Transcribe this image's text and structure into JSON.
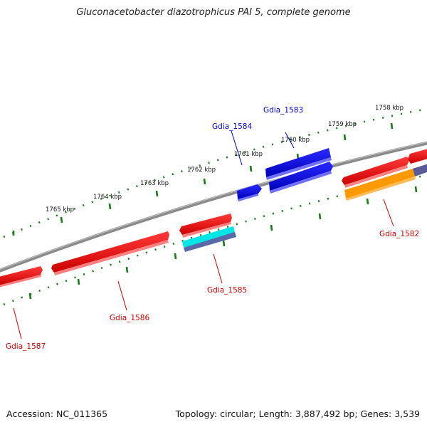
{
  "title": "Gluconacetobacter diazotrophicus PAI 5, complete genome",
  "footer": {
    "accession": "Accession: NC_011365",
    "summary": "Topology: circular; Length: 3,887,492 bp; Genes: 3,539"
  },
  "scale": {
    "labels": [
      "1758 kbp",
      "1759 kbp",
      "1760 kbp",
      "1761 kbp",
      "1762 kbp",
      "1763 kbp",
      "1764 kbp",
      "1765 kbp"
    ]
  },
  "genes": [
    {
      "label": "Gdia_1582",
      "color": "#cc0000"
    },
    {
      "label": "Gdia_1583",
      "color": "#0000cc"
    },
    {
      "label": "Gdia_1584",
      "color": "#0000cc"
    },
    {
      "label": "Gdia_1585",
      "color": "#cc0000"
    },
    {
      "label": "Gdia_1586",
      "color": "#cc0000"
    },
    {
      "label": "Gdia_1587",
      "color": "#cc0000"
    }
  ],
  "colors": {
    "forward": "#ff0000",
    "reverse": "#0000ff",
    "backbone": "#808080",
    "ticks": "#1a7a1a",
    "cyan_feature": "#00e5e5",
    "orange_feature": "#ff9900",
    "slate_feature": "#5a5a9a"
  }
}
